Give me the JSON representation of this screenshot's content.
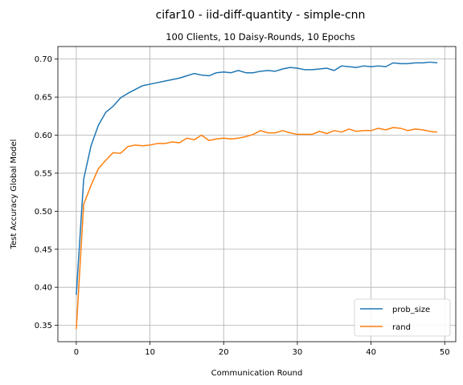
{
  "chart_data": {
    "type": "line",
    "title": "cifar10 - iid-diff-quantity - simple-cnn",
    "subtitle": "100 Clients, 10 Daisy-Rounds, 10 Epochs",
    "xlabel": "Communication Round",
    "ylabel": "Test Accuracy Global Model",
    "xlim": [
      -2.5,
      51.5
    ],
    "ylim": [
      0.3285,
      0.7165
    ],
    "xticks": [
      0,
      10,
      20,
      30,
      40,
      50
    ],
    "yticks": [
      0.35,
      0.4,
      0.45,
      0.5,
      0.55,
      0.6,
      0.65,
      0.7
    ],
    "grid": true,
    "legend_position": "lower-right",
    "series": [
      {
        "name": "prob_size",
        "color": "#1f77b4",
        "x": [
          0,
          1,
          2,
          3,
          4,
          5,
          6,
          7,
          8,
          9,
          10,
          11,
          12,
          13,
          14,
          15,
          16,
          17,
          18,
          19,
          20,
          21,
          22,
          23,
          24,
          25,
          26,
          27,
          28,
          29,
          30,
          31,
          32,
          33,
          34,
          35,
          36,
          37,
          38,
          39,
          40,
          41,
          42,
          43,
          44,
          45,
          46,
          47,
          48,
          49
        ],
        "values": [
          0.39,
          0.542,
          0.586,
          0.613,
          0.63,
          0.638,
          0.649,
          0.655,
          0.66,
          0.665,
          0.667,
          0.669,
          0.671,
          0.673,
          0.675,
          0.678,
          0.681,
          0.679,
          0.678,
          0.682,
          0.683,
          0.682,
          0.685,
          0.682,
          0.682,
          0.684,
          0.685,
          0.684,
          0.687,
          0.689,
          0.688,
          0.686,
          0.686,
          0.687,
          0.688,
          0.685,
          0.691,
          0.69,
          0.689,
          0.691,
          0.69,
          0.691,
          0.69,
          0.695,
          0.694,
          0.694,
          0.695,
          0.695,
          0.696,
          0.695
        ]
      },
      {
        "name": "rand",
        "color": "#ff7f0e",
        "x": [
          0,
          1,
          2,
          3,
          4,
          5,
          6,
          7,
          8,
          9,
          10,
          11,
          12,
          13,
          14,
          15,
          16,
          17,
          18,
          19,
          20,
          21,
          22,
          23,
          24,
          25,
          26,
          27,
          28,
          29,
          30,
          31,
          32,
          33,
          34,
          35,
          36,
          37,
          38,
          39,
          40,
          41,
          42,
          43,
          44,
          45,
          46,
          47,
          48,
          49
        ],
        "values": [
          0.345,
          0.509,
          0.534,
          0.556,
          0.567,
          0.577,
          0.576,
          0.585,
          0.587,
          0.586,
          0.587,
          0.589,
          0.589,
          0.591,
          0.59,
          0.596,
          0.594,
          0.6,
          0.593,
          0.595,
          0.596,
          0.595,
          0.596,
          0.598,
          0.601,
          0.606,
          0.603,
          0.603,
          0.606,
          0.603,
          0.601,
          0.601,
          0.601,
          0.605,
          0.602,
          0.606,
          0.604,
          0.608,
          0.605,
          0.606,
          0.606,
          0.609,
          0.607,
          0.61,
          0.609,
          0.606,
          0.608,
          0.607,
          0.605,
          0.604
        ]
      }
    ]
  }
}
